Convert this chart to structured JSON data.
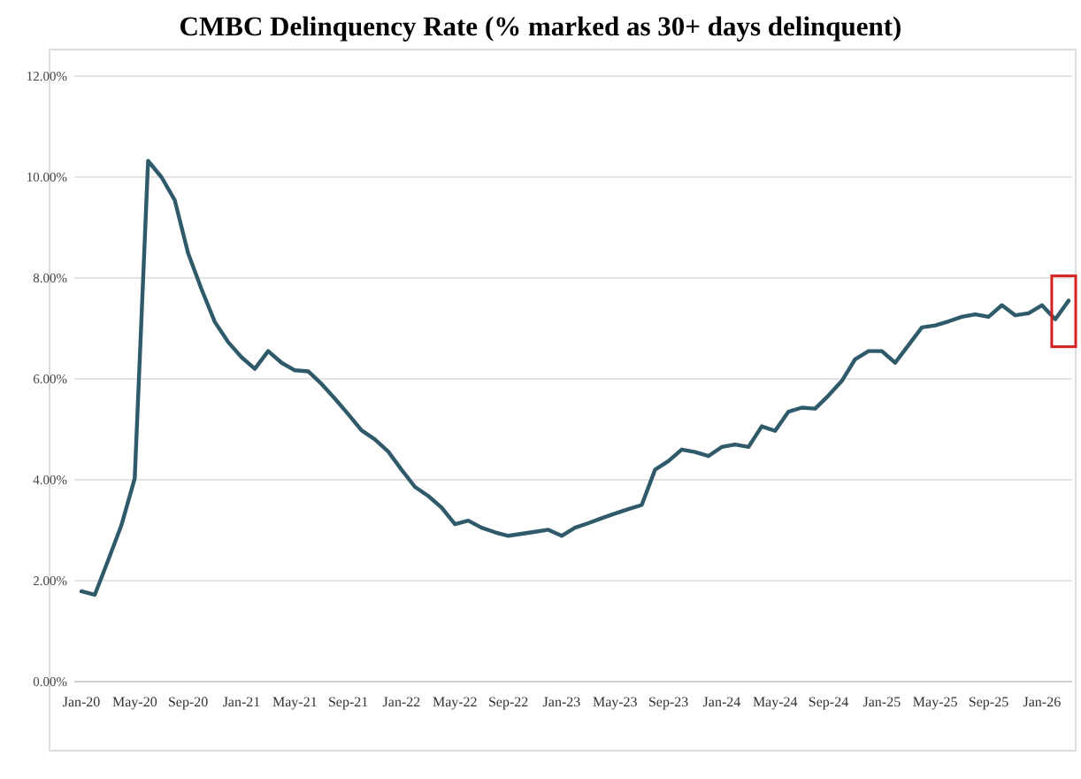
{
  "chart_data": {
    "type": "line",
    "title": "CMBC Delinquency Rate (% marked as 30+ days delinquent)",
    "categories": [
      "Jan-20",
      null,
      null,
      null,
      "May-20",
      null,
      null,
      null,
      "Sep-20",
      null,
      null,
      null,
      "Jan-21",
      null,
      null,
      null,
      "May-21",
      null,
      null,
      null,
      "Sep-21",
      null,
      null,
      null,
      "Jan-22",
      null,
      null,
      null,
      "May-22",
      null,
      null,
      null,
      "Sep-22",
      null,
      null,
      null,
      "Jan-23",
      null,
      null,
      null,
      "May-23",
      null,
      null,
      null,
      "Sep-23",
      null,
      null,
      null,
      "Jan-24",
      null,
      null,
      null,
      "May-24",
      null,
      null,
      null,
      "Sep-24",
      null,
      null,
      null,
      "Jan-25",
      null,
      null,
      null,
      "May-25",
      null,
      null,
      null,
      "Sep-25",
      null,
      null,
      null,
      "Jan-26",
      null,
      null
    ],
    "series": [
      {
        "color": "#2f5a6a",
        "values": [
          1.79,
          1.72,
          2.4,
          3.1,
          4.03,
          10.32,
          10.0,
          9.54,
          8.49,
          7.78,
          7.13,
          6.73,
          6.43,
          6.2,
          6.55,
          6.32,
          6.17,
          6.15,
          5.9,
          5.61,
          5.3,
          4.98,
          4.8,
          4.56,
          4.2,
          3.86,
          3.68,
          3.45,
          3.12,
          3.19,
          3.05,
          2.96,
          2.89,
          2.93,
          2.97,
          3.01,
          2.89,
          3.05,
          3.14,
          3.24,
          3.33,
          3.42,
          3.5,
          4.2,
          4.37,
          4.6,
          4.55,
          4.47,
          4.65,
          4.7,
          4.65,
          5.06,
          4.97,
          5.35,
          5.43,
          5.41,
          5.67,
          5.96,
          6.39,
          6.55,
          6.55,
          6.32,
          6.67,
          7.02,
          7.06,
          7.14,
          7.23,
          7.28,
          7.23,
          7.46,
          7.26,
          7.3,
          7.46,
          7.18,
          7.55
        ]
      }
    ],
    "ylim": [
      0,
      12
    ],
    "yticks": [
      {
        "value": 0,
        "label": "0.00%"
      },
      {
        "value": 2,
        "label": "2.00%"
      },
      {
        "value": 4,
        "label": "4.00%"
      },
      {
        "value": 6,
        "label": "6.00%"
      },
      {
        "value": 8,
        "label": "8.00%"
      },
      {
        "value": 10,
        "label": "10.00%"
      },
      {
        "value": 12,
        "label": "12.00%"
      }
    ],
    "grid": "y",
    "marker": "none",
    "line_style": "solid"
  }
}
